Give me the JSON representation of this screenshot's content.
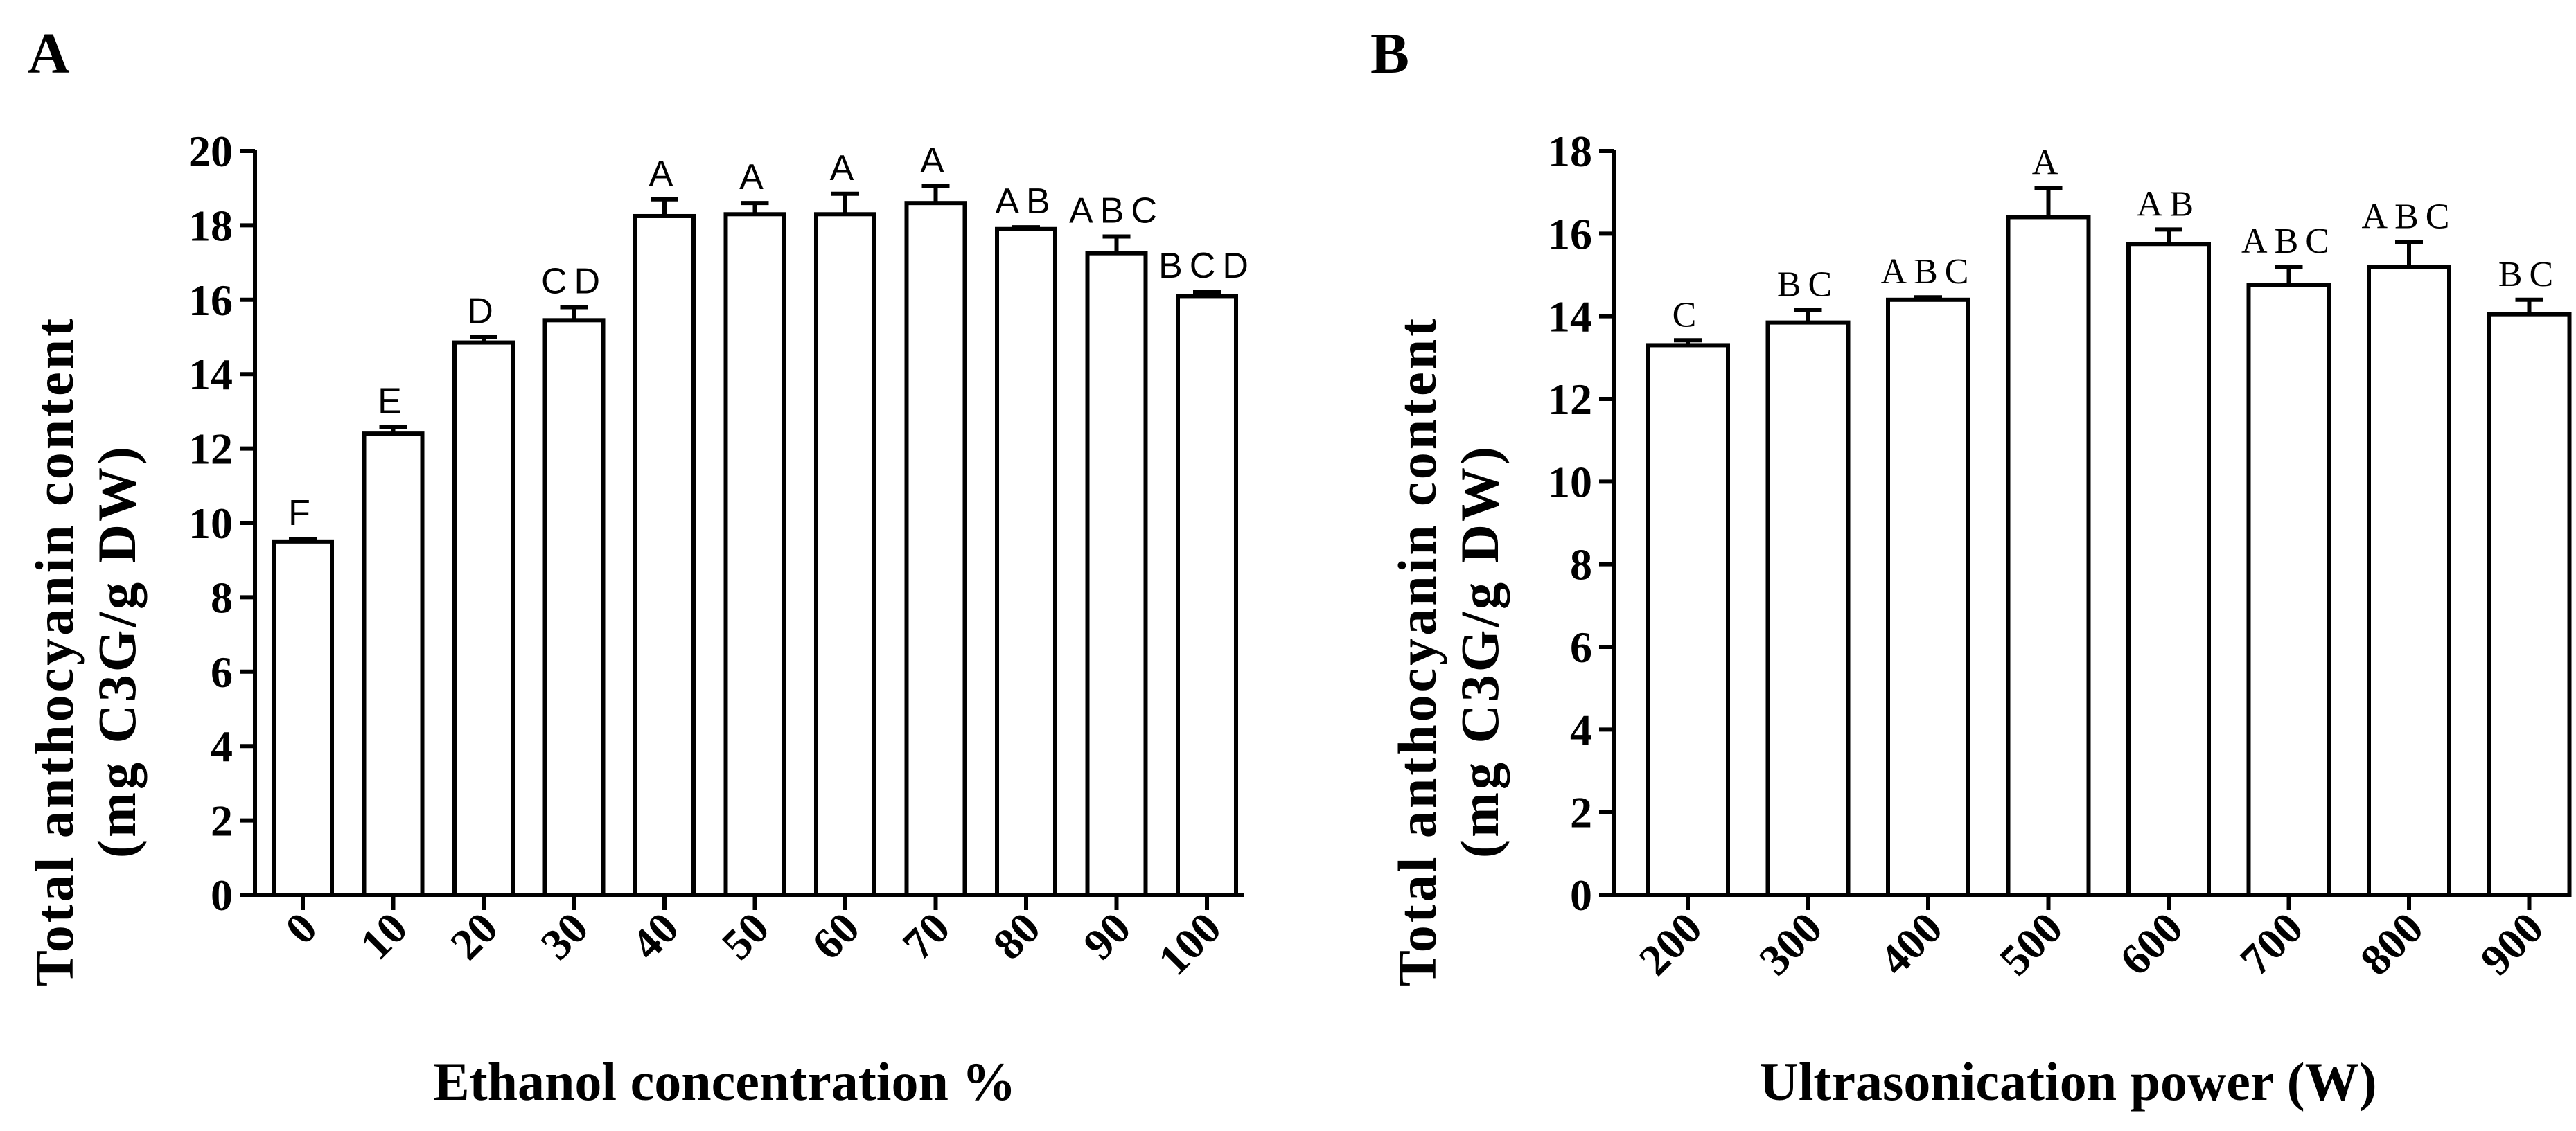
{
  "chart_data": [
    {
      "type": "bar",
      "panel": "A",
      "categories": [
        "0",
        "10",
        "20",
        "30",
        "40",
        "50",
        "60",
        "70",
        "80",
        "90",
        "100"
      ],
      "values": [
        9.5,
        12.4,
        14.85,
        15.45,
        18.25,
        18.3,
        18.3,
        18.6,
        17.9,
        17.25,
        16.1
      ],
      "errors": [
        0.07,
        0.18,
        0.15,
        0.35,
        0.45,
        0.3,
        0.55,
        0.45,
        0.05,
        0.45,
        0.12
      ],
      "significance": [
        "F",
        "E",
        "D",
        "CD",
        "A",
        "A",
        "A",
        "A",
        "AB",
        "ABC",
        "BCD"
      ],
      "title": "",
      "xlabel": "Ethanol concentration %",
      "ylabel_line1": "Total anthocyanin content",
      "ylabel_line2": "(mg C3G/g DW)",
      "ylim": [
        0,
        20
      ],
      "yticks": [
        "0",
        "2",
        "4",
        "6",
        "8",
        "10",
        "12",
        "14",
        "16",
        "18",
        "20"
      ],
      "grid": false,
      "legend": "none"
    },
    {
      "type": "bar",
      "panel": "B",
      "categories": [
        "200",
        "300",
        "400",
        "500",
        "600",
        "700",
        "800",
        "900"
      ],
      "values": [
        13.3,
        13.85,
        14.4,
        16.4,
        15.75,
        14.75,
        15.2,
        14.05
      ],
      "errors": [
        0.12,
        0.3,
        0.06,
        0.7,
        0.35,
        0.45,
        0.6,
        0.35
      ],
      "significance": [
        "C",
        "BC",
        "ABC",
        "A",
        "AB",
        "ABC",
        "ABC",
        "BC"
      ],
      "title": "",
      "xlabel": "Ultrasonication power (W)",
      "ylabel_line1": "Total anthocyanin content",
      "ylabel_line2": "(mg C3G/g DW)",
      "ylim": [
        0,
        18
      ],
      "yticks": [
        "0",
        "2",
        "4",
        "6",
        "8",
        "10",
        "12",
        "14",
        "16",
        "18"
      ],
      "grid": false,
      "legend": "none"
    }
  ],
  "colors": {
    "bar_fill": "#ffffff",
    "stroke": "#000000",
    "text": "#000000"
  }
}
